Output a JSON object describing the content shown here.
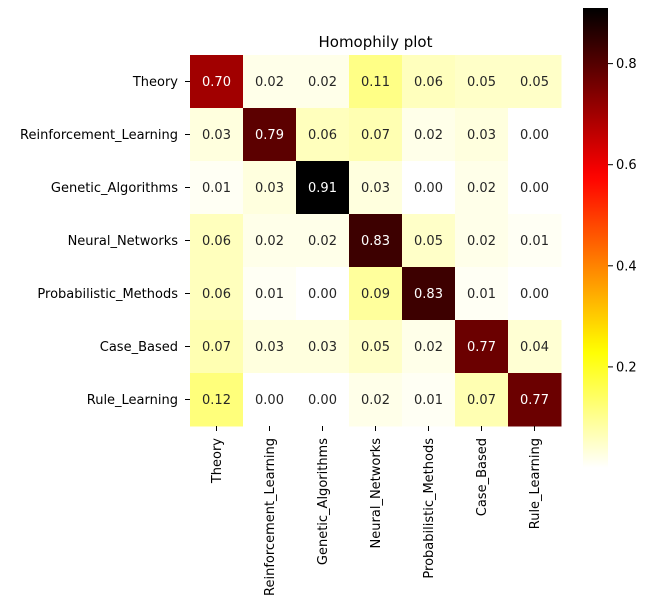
{
  "chart_data": {
    "type": "heatmap",
    "title": "Homophily plot",
    "xlabel": "",
    "ylabel": "",
    "colormap": "hot_r",
    "vmin": 0.0,
    "vmax": 0.91,
    "rows": [
      "Theory",
      "Reinforcement_Learning",
      "Genetic_Algorithms",
      "Neural_Networks",
      "Probabilistic_Methods",
      "Case_Based",
      "Rule_Learning"
    ],
    "columns": [
      "Theory",
      "Reinforcement_Learning",
      "Genetic_Algorithms",
      "Neural_Networks",
      "Probabilistic_Methods",
      "Case_Based",
      "Rule_Learning"
    ],
    "values": [
      [
        0.7,
        0.02,
        0.02,
        0.11,
        0.06,
        0.05,
        0.05
      ],
      [
        0.03,
        0.79,
        0.06,
        0.07,
        0.02,
        0.03,
        0.0
      ],
      [
        0.01,
        0.03,
        0.91,
        0.03,
        0.0,
        0.02,
        0.0
      ],
      [
        0.06,
        0.02,
        0.02,
        0.83,
        0.05,
        0.02,
        0.01
      ],
      [
        0.06,
        0.01,
        0.0,
        0.09,
        0.83,
        0.01,
        0.0
      ],
      [
        0.07,
        0.03,
        0.03,
        0.05,
        0.02,
        0.77,
        0.04
      ],
      [
        0.12,
        0.0,
        0.0,
        0.02,
        0.01,
        0.07,
        0.77
      ]
    ],
    "value_format": "0.00",
    "colorbar": {
      "ticks": [
        0.2,
        0.4,
        0.6,
        0.8
      ],
      "tick_labels": [
        "0.2",
        "0.4",
        "0.6",
        "0.8"
      ]
    }
  }
}
